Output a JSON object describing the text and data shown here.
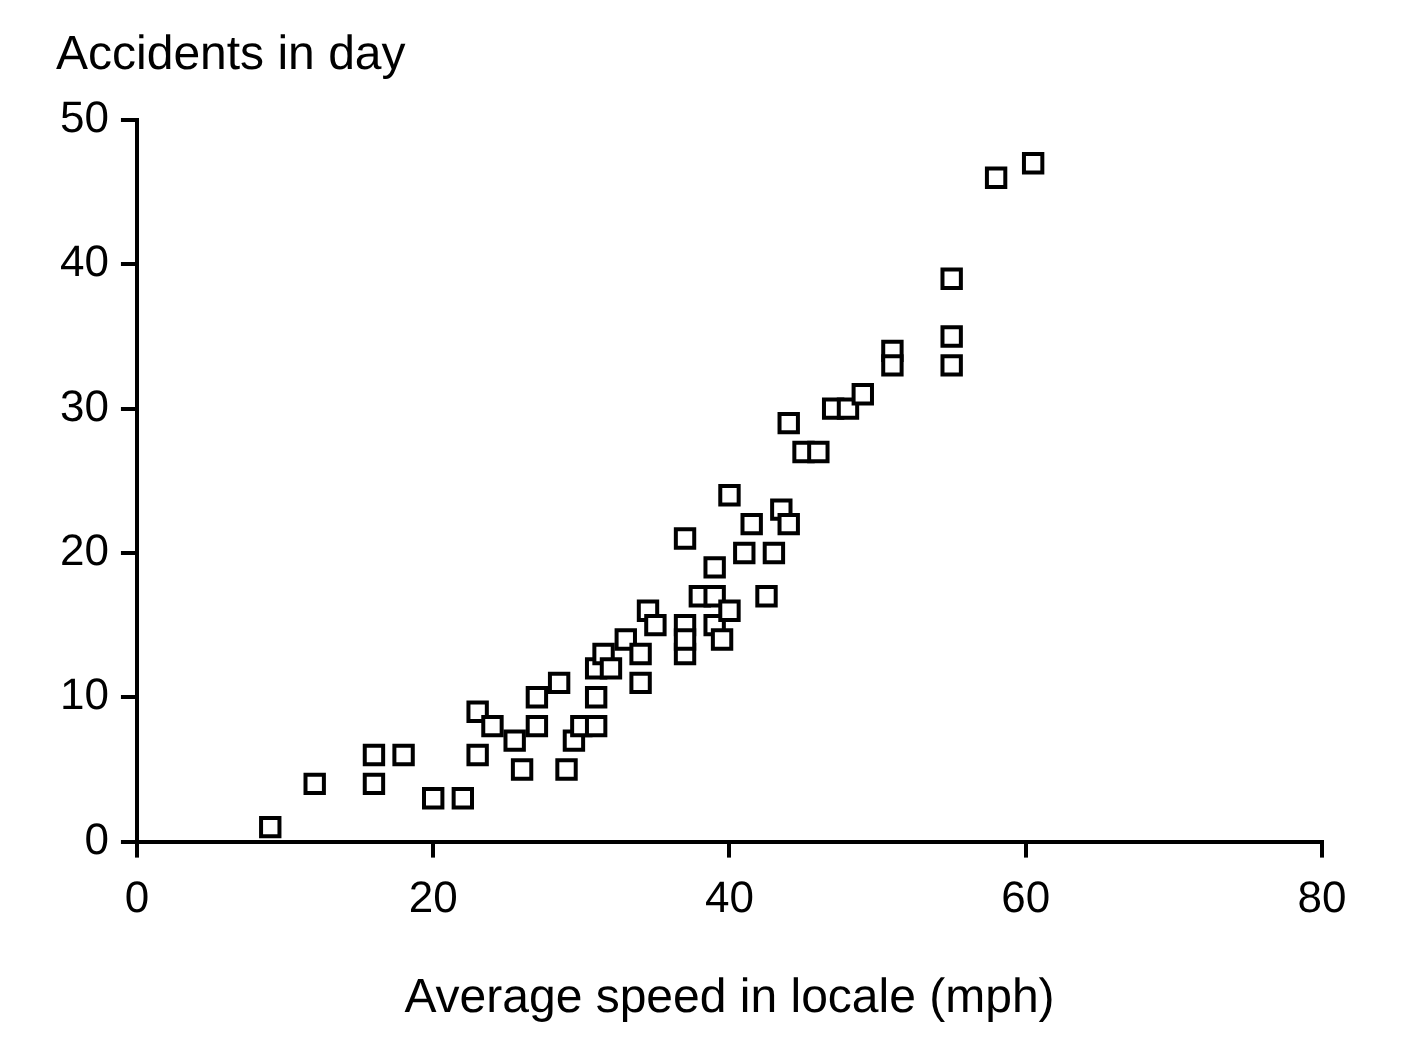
{
  "chart_data": {
    "type": "scatter",
    "xlabel": "Average speed in locale (mph)",
    "ylabel": "Accidents in day",
    "x": [
      9,
      12,
      16,
      16,
      18,
      20,
      22,
      23,
      23,
      24,
      25.5,
      26,
      27,
      27,
      28.5,
      29,
      29.5,
      30,
      31,
      31,
      31,
      31.5,
      32,
      33,
      34,
      34,
      34.5,
      35,
      37,
      37,
      37,
      37,
      38,
      39,
      39,
      39,
      39.5,
      40,
      40,
      41,
      41.5,
      42.5,
      43,
      43.5,
      44,
      44,
      45,
      46,
      47,
      48,
      49,
      51,
      51,
      55,
      55,
      55,
      58,
      60.5
    ],
    "series": [
      {
        "color": "#000000",
        "values": [
          1,
          4,
          6,
          4,
          6,
          3,
          3,
          9,
          6,
          8,
          7,
          5,
          8,
          10,
          11,
          5,
          7,
          8,
          8,
          10,
          12,
          13,
          12,
          14,
          11,
          13,
          16,
          15,
          15,
          13,
          14,
          21,
          17,
          15,
          17,
          19,
          14,
          16,
          24,
          20,
          22,
          17,
          20,
          23,
          29,
          22,
          27,
          27,
          30,
          30,
          31,
          34,
          33,
          39,
          35,
          33,
          46,
          47
        ]
      }
    ],
    "xlim": [
      0,
      80
    ],
    "xticks": [
      0,
      20,
      40,
      60,
      80
    ],
    "ylim": [
      0,
      50
    ],
    "yticks": [
      0,
      10,
      20,
      30,
      40,
      50
    ],
    "grid": false,
    "legend": false,
    "marker": "square"
  }
}
